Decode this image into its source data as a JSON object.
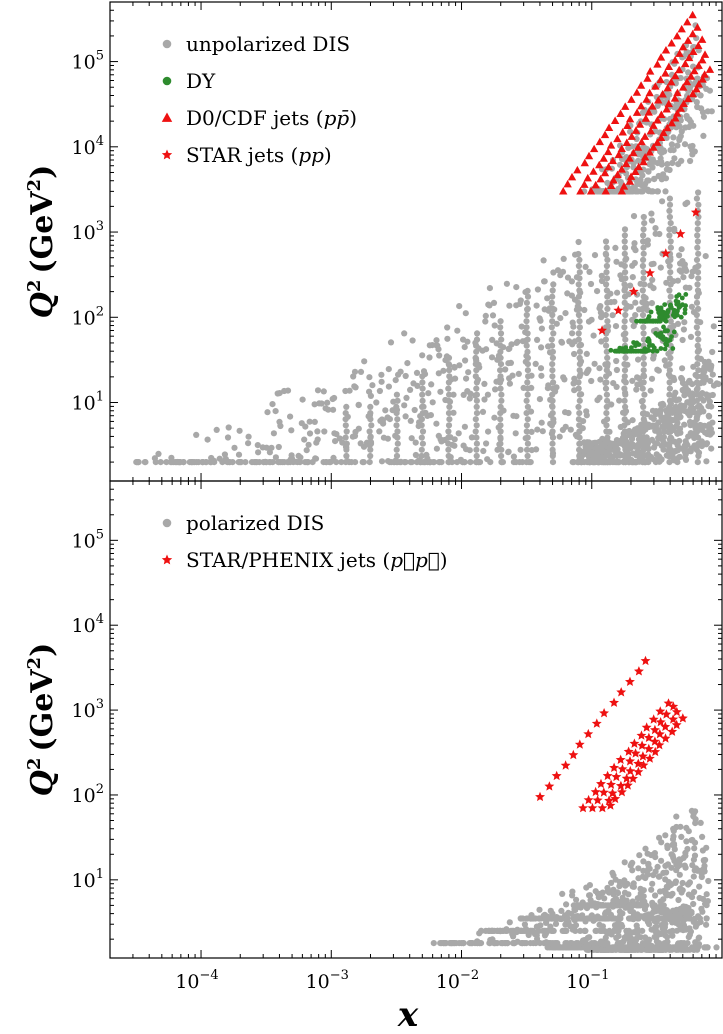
{
  "chart_data": [
    {
      "type": "scatter",
      "panel": "top",
      "scale": {
        "x": "log",
        "y": "log"
      },
      "xlim": [
        2e-05,
        1
      ],
      "ylim": [
        1.2,
        500000
      ],
      "ylabel_var": "Q",
      "ylabel_unit": "(GeV",
      "ylabel_close": ")",
      "legend": {
        "position": "top-left"
      },
      "yticks": [
        {
          "base": "10",
          "exp": "1",
          "value": 10
        },
        {
          "base": "10",
          "exp": "2",
          "value": 100
        },
        {
          "base": "10",
          "exp": "3",
          "value": 1000
        },
        {
          "base": "10",
          "exp": "4",
          "value": 10000
        },
        {
          "base": "10",
          "exp": "5",
          "value": 100000
        }
      ],
      "series": [
        {
          "name": "unpolarized DIS",
          "marker": "circle",
          "color": "#a8a8a8",
          "bands": [
            {
              "x0": 3e-05,
              "q0": 2,
              "x1": 0.55,
              "q1": 3000
            },
            {
              "x0": 6e-05,
              "q0": 2,
              "x1": 0.6,
              "q1": 1500
            },
            {
              "x0": 0.0003,
              "q0": 2,
              "x1": 0.7,
              "q1": 600
            },
            {
              "x0": 0.003,
              "q0": 2,
              "x1": 0.8,
              "q1": 120
            },
            {
              "x0": 0.08,
              "q0": 2,
              "x1": 0.85,
              "q1": 30
            },
            {
              "x0": 0.1,
              "q0": 3000,
              "x1": 0.65,
              "q1": 300000
            },
            {
              "x0": 0.13,
              "q0": 3000,
              "x1": 0.75,
              "q1": 100000
            }
          ],
          "vertical_columns_x": [
            0.0013,
            0.002,
            0.0032,
            0.005,
            0.008,
            0.013,
            0.02,
            0.032,
            0.05,
            0.08,
            0.13,
            0.18,
            0.25,
            0.4,
            0.65
          ],
          "curved_cluster": {
            "x_range": [
              0.08,
              0.85
            ],
            "q_range": [
              2,
              25
            ]
          }
        },
        {
          "name": "DY",
          "marker": "circle",
          "color": "#2e8b2e",
          "bands": [
            {
              "x0": 0.15,
              "q0": 40,
              "x1": 0.4,
              "q1": 80
            },
            {
              "x0": 0.25,
              "q0": 90,
              "x1": 0.5,
              "q1": 200
            }
          ]
        },
        {
          "name": "D0/CDF jets (",
          "name_math": "pp̄",
          "name_close": ")",
          "marker": "triangle",
          "color": "#ee1111",
          "rows": [
            {
              "x0": 0.06,
              "q0": 3000,
              "x1": 0.6,
              "q1": 350000
            },
            {
              "x0": 0.08,
              "q0": 3000,
              "x1": 0.65,
              "q1": 250000
            },
            {
              "x0": 0.1,
              "q0": 3000,
              "x1": 0.7,
              "q1": 180000
            },
            {
              "x0": 0.13,
              "q0": 3000,
              "x1": 0.75,
              "q1": 120000
            },
            {
              "x0": 0.17,
              "q0": 3000,
              "x1": 0.8,
              "q1": 80000
            }
          ]
        },
        {
          "name": "STAR jets (",
          "name_math": "pp",
          "name_close": ")",
          "marker": "star",
          "color": "#ee1111",
          "points": [
            {
              "x": 0.12,
              "y": 70
            },
            {
              "x": 0.16,
              "y": 120
            },
            {
              "x": 0.21,
              "y": 200
            },
            {
              "x": 0.28,
              "y": 330
            },
            {
              "x": 0.37,
              "y": 560
            },
            {
              "x": 0.48,
              "y": 950
            },
            {
              "x": 0.63,
              "y": 1700
            }
          ]
        }
      ]
    },
    {
      "type": "scatter",
      "panel": "bottom",
      "scale": {
        "x": "log",
        "y": "log"
      },
      "xlim": [
        2e-05,
        1
      ],
      "ylim": [
        1.2,
        500000
      ],
      "xlabel": "x",
      "ylabel_var": "Q",
      "ylabel_unit": "(GeV",
      "ylabel_close": ")",
      "legend": {
        "position": "top-left"
      },
      "xticks": [
        {
          "base": "10",
          "exp": "−4",
          "value": 0.0001
        },
        {
          "base": "10",
          "exp": "−3",
          "value": 0.001
        },
        {
          "base": "10",
          "exp": "−2",
          "value": 0.01
        },
        {
          "base": "10",
          "exp": "−1",
          "value": 0.1
        }
      ],
      "yticks": [
        {
          "base": "10",
          "exp": "1",
          "value": 10
        },
        {
          "base": "10",
          "exp": "2",
          "value": 100
        },
        {
          "base": "10",
          "exp": "3",
          "value": 1000
        },
        {
          "base": "10",
          "exp": "4",
          "value": 10000
        },
        {
          "base": "10",
          "exp": "5",
          "value": 100000
        }
      ],
      "series": [
        {
          "name": "polarized DIS",
          "marker": "circle",
          "color": "#a8a8a8",
          "bands": [
            {
              "x0": 0.007,
              "q0": 1.8,
              "x1": 0.55,
              "q1": 10
            },
            {
              "x0": 0.015,
              "q0": 2.5,
              "x1": 0.7,
              "q1": 40
            },
            {
              "x0": 0.03,
              "q0": 3.5,
              "x1": 0.75,
              "q1": 15
            },
            {
              "x0": 0.05,
              "q0": 1.6,
              "x1": 0.8,
              "q1": 8
            },
            {
              "x0": 0.08,
              "q0": 5,
              "x1": 0.7,
              "q1": 90
            },
            {
              "x0": 0.1,
              "q0": 1.5,
              "x1": 0.6,
              "q1": 5
            }
          ]
        },
        {
          "name": "STAR/PHENIX jets (",
          "name_math": "p⃗p⃗",
          "name_close": ")",
          "marker": "star",
          "color": "#ee1111",
          "rows": [
            {
              "x0": 0.04,
              "q0": 95,
              "x1": 0.26,
              "q1": 3800
            },
            {
              "x0": 0.085,
              "q0": 70,
              "x1": 0.38,
              "q1": 1200
            },
            {
              "x0": 0.1,
              "q0": 70,
              "x1": 0.42,
              "q1": 1100
            },
            {
              "x0": 0.12,
              "q0": 70,
              "x1": 0.46,
              "q1": 950
            },
            {
              "x0": 0.14,
              "q0": 75,
              "x1": 0.5,
              "q1": 800
            }
          ]
        }
      ]
    }
  ]
}
